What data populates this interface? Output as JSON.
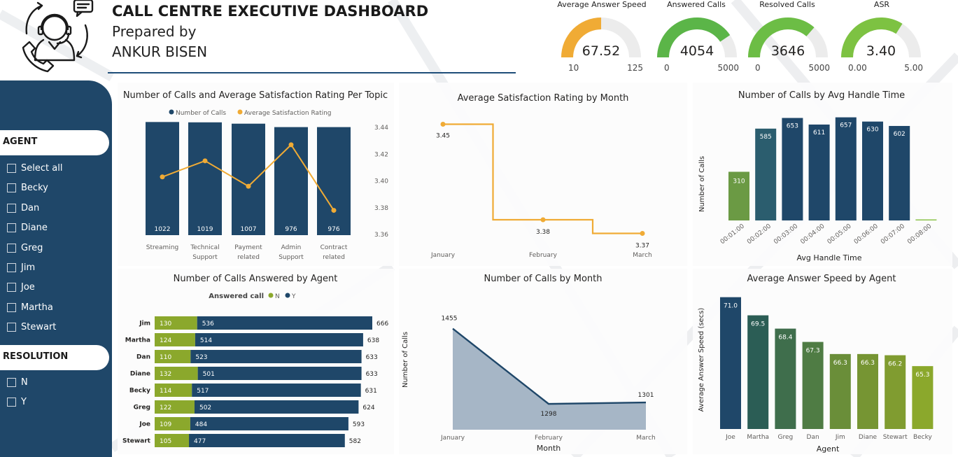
{
  "header": {
    "title": "CALL CENTRE EXECUTIVE DASHBOARD",
    "prepared_label": "Prepared by",
    "author": "ANKUR BISEN"
  },
  "colors": {
    "navy": "#1f4769",
    "orange": "#f0ab35",
    "green": "#7cb83a",
    "olive": "#8ba82c"
  },
  "gauges": [
    {
      "title": "Average Answer Speed",
      "value": 67.52,
      "value_text": "67.52",
      "min": 10,
      "max": 125,
      "min_text": "10",
      "max_text": "125",
      "color": "#f0ab35"
    },
    {
      "title": "Answered Calls",
      "value": 4054,
      "value_text": "4054",
      "min": 0,
      "max": 5000,
      "min_text": "0",
      "max_text": "5000",
      "color": "#5bb548"
    },
    {
      "title": "Resolved Calls",
      "value": 3646,
      "value_text": "3646",
      "min": 0,
      "max": 5000,
      "min_text": "0",
      "max_text": "5000",
      "color": "#6cbd45"
    },
    {
      "title": "ASR",
      "value": 3.4,
      "value_text": "3.40",
      "min": 0,
      "max": 5,
      "min_text": "0.00",
      "max_text": "5.00",
      "color": "#7dc242"
    }
  ],
  "sidebar": {
    "agent_header": "AGENT",
    "agent_items": [
      "Select all",
      "Becky",
      "Dan",
      "Diane",
      "Greg",
      "Jim",
      "Joe",
      "Martha",
      "Stewart"
    ],
    "resolution_header": "RESOLUTION",
    "resolution_items": [
      "N",
      "Y"
    ]
  },
  "chart_data": [
    {
      "id": "calls_topic",
      "type": "bar",
      "title": "Number of Calls and Average Satisfaction Rating Per Topic",
      "categories": [
        "Streaming",
        "Technical Support",
        "Payment related",
        "Admin Support",
        "Contract related"
      ],
      "category_lines": [
        [
          "Streaming"
        ],
        [
          "Technical",
          "Support"
        ],
        [
          "Payment",
          "related"
        ],
        [
          "Admin",
          "Support"
        ],
        [
          "Contract",
          "related"
        ]
      ],
      "series": [
        {
          "name": "Number of Calls",
          "values": [
            1022,
            1019,
            1007,
            976,
            976
          ],
          "color": "#1f4769"
        },
        {
          "name": "Average Satisfaction Rating",
          "values": [
            3.403,
            3.415,
            3.396,
            3.427,
            3.378
          ],
          "color": "#f0ab35"
        }
      ],
      "y2_ticks": [
        "3.44",
        "3.42",
        "3.40",
        "3.38",
        "3.36"
      ],
      "y2lim": [
        3.36,
        3.44
      ],
      "legend": "top"
    },
    {
      "id": "rating_month",
      "type": "line",
      "title": "Average Satisfaction Rating by Month",
      "categories": [
        "January",
        "February",
        "March"
      ],
      "values": [
        3.45,
        3.38,
        3.37
      ],
      "value_labels": [
        "3.45",
        "3.38",
        "3.37"
      ],
      "ylim": [
        3.36,
        3.46
      ],
      "color": "#f0ab35"
    },
    {
      "id": "aht",
      "type": "bar",
      "title": "Number of Calls by Avg Handle Time",
      "xlabel": "Avg Handle Time",
      "ylabel": "Number of Calls",
      "categories": [
        "00:01:00",
        "00:02:00",
        "00:03:00",
        "00:04:00",
        "00:05:00",
        "00:06:00",
        "00:07:00",
        "00:08:00"
      ],
      "values": [
        310,
        585,
        653,
        611,
        657,
        630,
        602,
        3
      ],
      "value_labels": [
        "310",
        "585",
        "653",
        "611",
        "657",
        "630",
        "602",
        ""
      ],
      "colors": [
        "#6b9a44",
        "#2b5d6e",
        "#1f4769",
        "#1f4769",
        "#1f4769",
        "#1f4769",
        "#1f4769",
        "#8bc34a"
      ],
      "ylim": [
        0,
        700
      ]
    },
    {
      "id": "answered_agent",
      "type": "bar",
      "orientation": "horizontal",
      "stacked": true,
      "title": "Number of Calls Answered by Agent",
      "legend_title": "Answered call",
      "categories": [
        "Jim",
        "Martha",
        "Dan",
        "Diane",
        "Becky",
        "Greg",
        "Joe",
        "Stewart"
      ],
      "series": [
        {
          "name": "N",
          "values": [
            130,
            124,
            110,
            132,
            114,
            122,
            109,
            105
          ],
          "color": "#8ba82c"
        },
        {
          "name": "Y",
          "values": [
            536,
            514,
            523,
            501,
            517,
            502,
            484,
            477
          ],
          "color": "#1f4769"
        }
      ],
      "totals": [
        666,
        638,
        633,
        633,
        631,
        624,
        593,
        582
      ],
      "xlim": [
        0,
        666
      ]
    },
    {
      "id": "calls_month",
      "type": "area",
      "title": "Number of Calls by Month",
      "xlabel": "Month",
      "ylabel": "Number of Calls",
      "categories": [
        "January",
        "February",
        "March"
      ],
      "values": [
        1455,
        1298,
        1301
      ],
      "value_labels": [
        "1455",
        "1298",
        "1301"
      ],
      "ylim": [
        1250,
        1470
      ],
      "color": "#1f4769"
    },
    {
      "id": "speed_agent",
      "type": "bar",
      "title": "Average Answer Speed by Agent",
      "xlabel": "Agent",
      "ylabel": "Average Answer Speed (secs)",
      "categories": [
        "Joe",
        "Martha",
        "Greg",
        "Dan",
        "Jim",
        "Diane",
        "Stewart",
        "Becky"
      ],
      "values": [
        71.0,
        69.5,
        68.4,
        67.3,
        66.3,
        66.3,
        66.2,
        65.3
      ],
      "value_labels": [
        "71.0",
        "69.5",
        "68.4",
        "67.3",
        "66.3",
        "66.3",
        "66.2",
        "65.3"
      ],
      "colors": [
        "#1f4769",
        "#2b5d55",
        "#3f6e4c",
        "#4f7c44",
        "#6a8e39",
        "#769533",
        "#809c30",
        "#8ba82c"
      ],
      "ylim": [
        60.1,
        71.5
      ]
    }
  ]
}
